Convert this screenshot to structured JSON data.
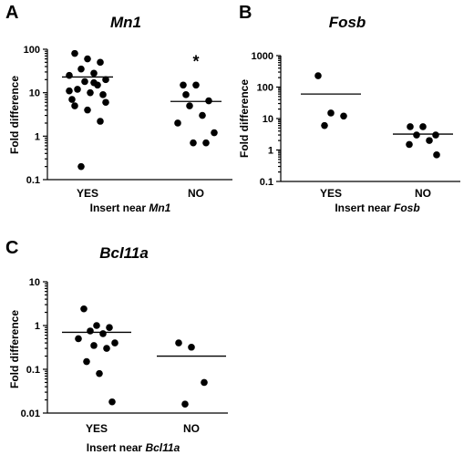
{
  "chart_data": [
    {
      "type": "scatter",
      "panel": "A",
      "title": "Mn1",
      "ylabel": "Fold difference",
      "xlabel_prefix": "Insert near ",
      "xlabel_gene": "Mn1",
      "yscale": "log",
      "ylim": [
        0.1,
        100
      ],
      "yticks": [
        "0.1",
        "1",
        "10",
        "100"
      ],
      "categories": [
        "YES",
        "NO"
      ],
      "annotations": [
        {
          "category": "NO",
          "text": "*"
        }
      ],
      "series": [
        {
          "category": "YES",
          "mean": 23,
          "values": [
            80,
            60,
            50,
            35,
            28,
            25,
            20,
            18,
            15,
            12,
            10,
            9,
            7,
            5,
            4,
            2.2,
            0.2,
            17,
            11,
            6
          ]
        },
        {
          "category": "NO",
          "mean": 6.3,
          "values": [
            15,
            15,
            6.5,
            5,
            3,
            2,
            1.2,
            0.7,
            0.7,
            9
          ]
        }
      ]
    },
    {
      "type": "scatter",
      "panel": "B",
      "title": "Fosb",
      "ylabel": "Fold difference",
      "xlabel_prefix": "Insert near ",
      "xlabel_gene": "Fosb",
      "yscale": "log",
      "ylim": [
        0.1,
        1000
      ],
      "yticks": [
        "0.1",
        "1",
        "10",
        "100",
        "1000"
      ],
      "categories": [
        "YES",
        "NO"
      ],
      "series": [
        {
          "category": "YES",
          "mean": 60,
          "values": [
            230,
            15,
            12,
            6
          ]
        },
        {
          "category": "NO",
          "mean": 3.2,
          "values": [
            5.5,
            5.5,
            3,
            3,
            2,
            1.5,
            0.7
          ]
        }
      ]
    },
    {
      "type": "scatter",
      "panel": "C",
      "title": "Bcl11a",
      "ylabel": "Fold difference",
      "xlabel_prefix": "Insert near ",
      "xlabel_gene": "Bcl11a",
      "yscale": "log",
      "ylim": [
        0.01,
        10
      ],
      "yticks": [
        "0.01",
        "0.1",
        "1",
        "10"
      ],
      "categories": [
        "YES",
        "NO"
      ],
      "series": [
        {
          "category": "YES",
          "mean": 0.7,
          "values": [
            2.4,
            1,
            0.9,
            0.75,
            0.65,
            0.5,
            0.4,
            0.35,
            0.3,
            0.15,
            0.08,
            0.018
          ]
        },
        {
          "category": "NO",
          "mean": 0.2,
          "values": [
            0.4,
            0.32,
            0.05,
            0.016
          ]
        }
      ]
    }
  ]
}
